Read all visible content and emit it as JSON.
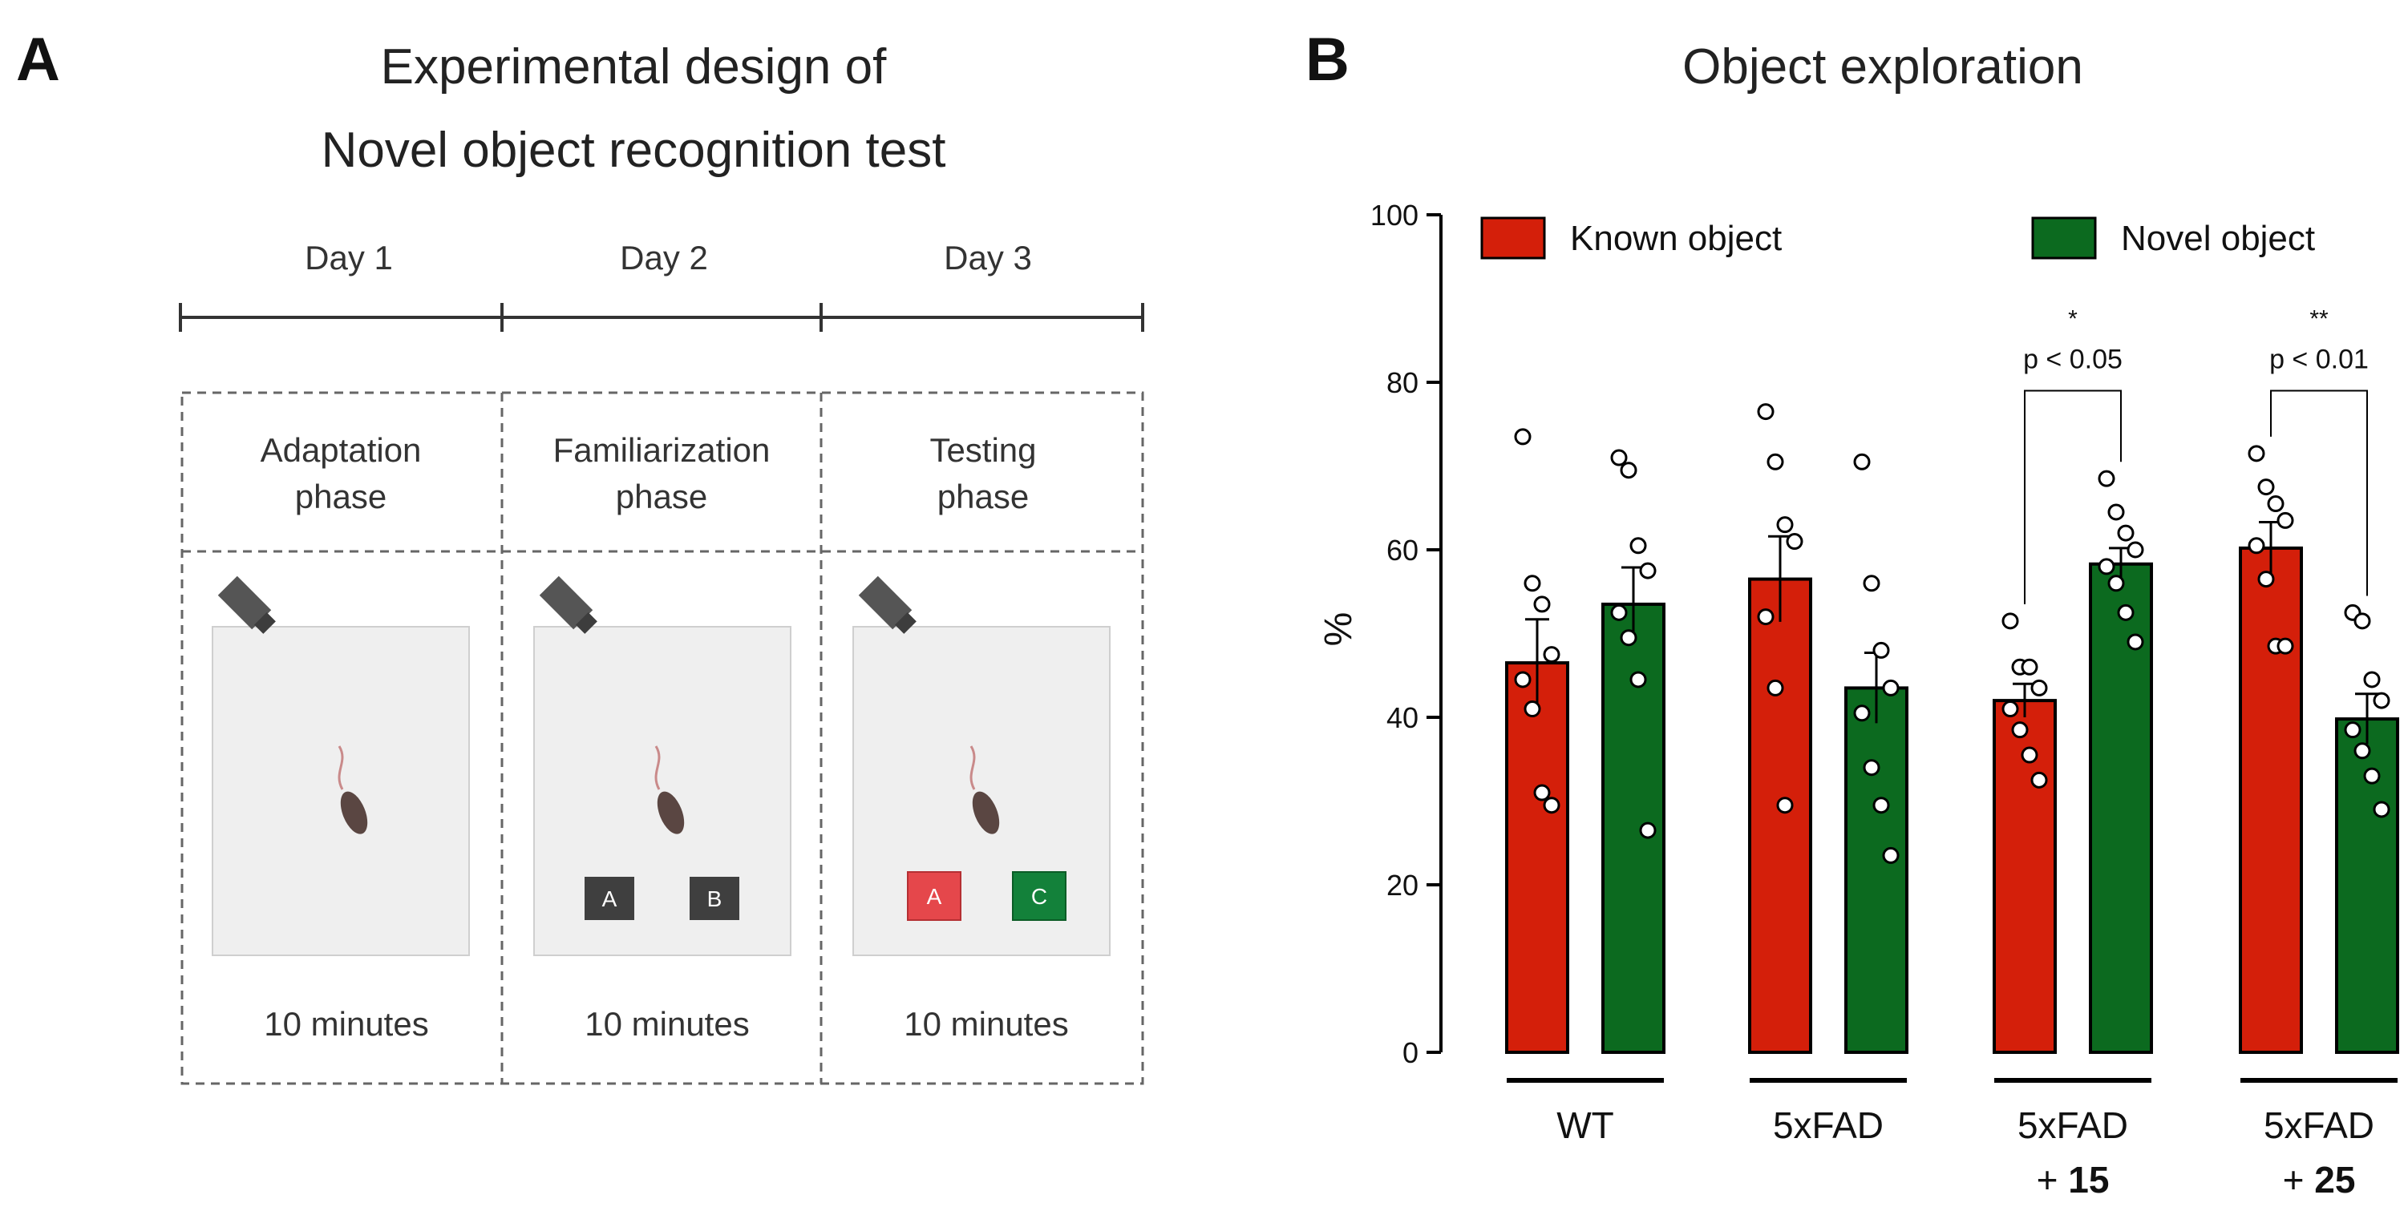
{
  "panel_a": {
    "letter": "A",
    "title_line1": "Experimental design of",
    "title_line2": "Novel object recognition test",
    "days": [
      "Day 1",
      "Day 2",
      "Day 3"
    ],
    "phases": [
      {
        "line1": "Adaptation",
        "line2": "phase",
        "duration": "10 minutes",
        "objects": []
      },
      {
        "line1": "Familiarization",
        "line2": "phase",
        "duration": "10 minutes",
        "objects": [
          "A",
          "B"
        ]
      },
      {
        "line1": "Testing",
        "line2": "phase",
        "duration": "10 minutes",
        "objects": [
          "A",
          "C"
        ]
      }
    ],
    "colors": {
      "object_dark": "#3f3f3f",
      "object_known": "#e5474b",
      "object_novel": "#13813a",
      "arena": "#efefef",
      "mouse": "#5a4642",
      "camera": "#555555"
    }
  },
  "panel_b": {
    "letter": "B"
  },
  "chart_data": {
    "type": "bar",
    "title": "Object exploration",
    "ylabel": "%",
    "xlabel": "",
    "ylim": [
      0,
      100
    ],
    "yticks": [
      0,
      20,
      40,
      60,
      80,
      100
    ],
    "categories": [
      {
        "line1": "WT",
        "line2_prefix": "",
        "line2_bold": ""
      },
      {
        "line1": "5xFAD",
        "line2_prefix": "",
        "line2_bold": ""
      },
      {
        "line1": "5xFAD",
        "line2_prefix": "+ ",
        "line2_bold": "15"
      },
      {
        "line1": "5xFAD",
        "line2_prefix": "+ ",
        "line2_bold": "25"
      }
    ],
    "legend_position": "top",
    "series": [
      {
        "name": "Known object",
        "color": "#d41f0a",
        "values": [
          46.5,
          56.5,
          42,
          60.2
        ],
        "sem": [
          5.2,
          5.1,
          2.0,
          3.1
        ],
        "points": [
          [
            73.5,
            56,
            53.5,
            47.5,
            44.5,
            41,
            31,
            29.5
          ],
          [
            76.5,
            70.5,
            63,
            61,
            52,
            43.5,
            29.5
          ],
          [
            51.5,
            46,
            46,
            43.5,
            41,
            38.5,
            35.5,
            32.5
          ],
          [
            71.5,
            67.5,
            65.5,
            63.5,
            60.5,
            56.5,
            48.5,
            48.5
          ]
        ]
      },
      {
        "name": "Novel object",
        "color": "#0c6a1f",
        "values": [
          53.5,
          43.5,
          58.3,
          39.8
        ],
        "sem": [
          4.4,
          4.2,
          1.9,
          3.0
        ],
        "points": [
          [
            71,
            69.5,
            60.5,
            57.5,
            52.5,
            49.5,
            44.5,
            26.5
          ],
          [
            70.5,
            56,
            48,
            43.5,
            40.5,
            34,
            29.5,
            23.5
          ],
          [
            68.5,
            64.5,
            62,
            60,
            58,
            56,
            52.5,
            49
          ],
          [
            52.5,
            51.5,
            44.5,
            42,
            38.5,
            36,
            33,
            29
          ]
        ]
      }
    ],
    "annotations": [
      {
        "category_index": 2,
        "stars": "*",
        "label": "p < 0.05",
        "bracket_y": 79
      },
      {
        "category_index": 3,
        "stars": "**",
        "label": "p < 0.01",
        "bracket_y": 79
      }
    ]
  }
}
